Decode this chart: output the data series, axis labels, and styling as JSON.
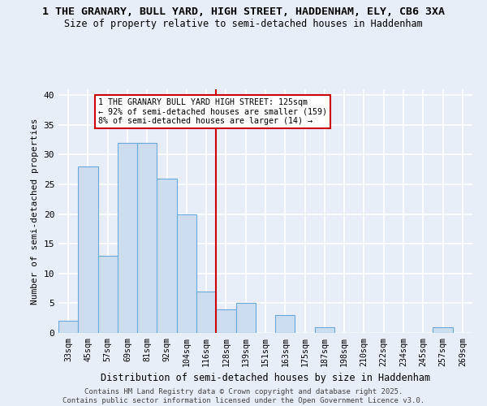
{
  "title_line1": "1 THE GRANARY, BULL YARD, HIGH STREET, HADDENHAM, ELY, CB6 3XA",
  "title_line2": "Size of property relative to semi-detached houses in Haddenham",
  "xlabel": "Distribution of semi-detached houses by size in Haddenham",
  "ylabel": "Number of semi-detached properties",
  "bar_labels": [
    "33sqm",
    "45sqm",
    "57sqm",
    "69sqm",
    "81sqm",
    "92sqm",
    "104sqm",
    "116sqm",
    "128sqm",
    "139sqm",
    "151sqm",
    "163sqm",
    "175sqm",
    "187sqm",
    "198sqm",
    "210sqm",
    "222sqm",
    "234sqm",
    "245sqm",
    "257sqm",
    "269sqm"
  ],
  "bar_values": [
    2,
    28,
    13,
    32,
    32,
    26,
    20,
    7,
    4,
    5,
    0,
    3,
    0,
    1,
    0,
    0,
    0,
    0,
    0,
    1,
    0
  ],
  "bar_color": "#ccddf0",
  "bar_edge_color": "#6baad8",
  "vline_x_idx": 8,
  "vline_color": "#cc0000",
  "annotation_text": "1 THE GRANARY BULL YARD HIGH STREET: 125sqm\n← 92% of semi-detached houses are smaller (159)\n8% of semi-detached houses are larger (14) →",
  "annotation_box_facecolor": "#ffffff",
  "annotation_box_edgecolor": "#cc0000",
  "ylim": [
    0,
    41
  ],
  "yticks": [
    0,
    5,
    10,
    15,
    20,
    25,
    30,
    35,
    40
  ],
  "bg_color": "#e8eef8",
  "plot_bg_color": "#e8eef8",
  "grid_color": "#ffffff",
  "footer_line1": "Contains HM Land Registry data © Crown copyright and database right 2025.",
  "footer_line2": "Contains public sector information licensed under the Open Government Licence v3.0."
}
